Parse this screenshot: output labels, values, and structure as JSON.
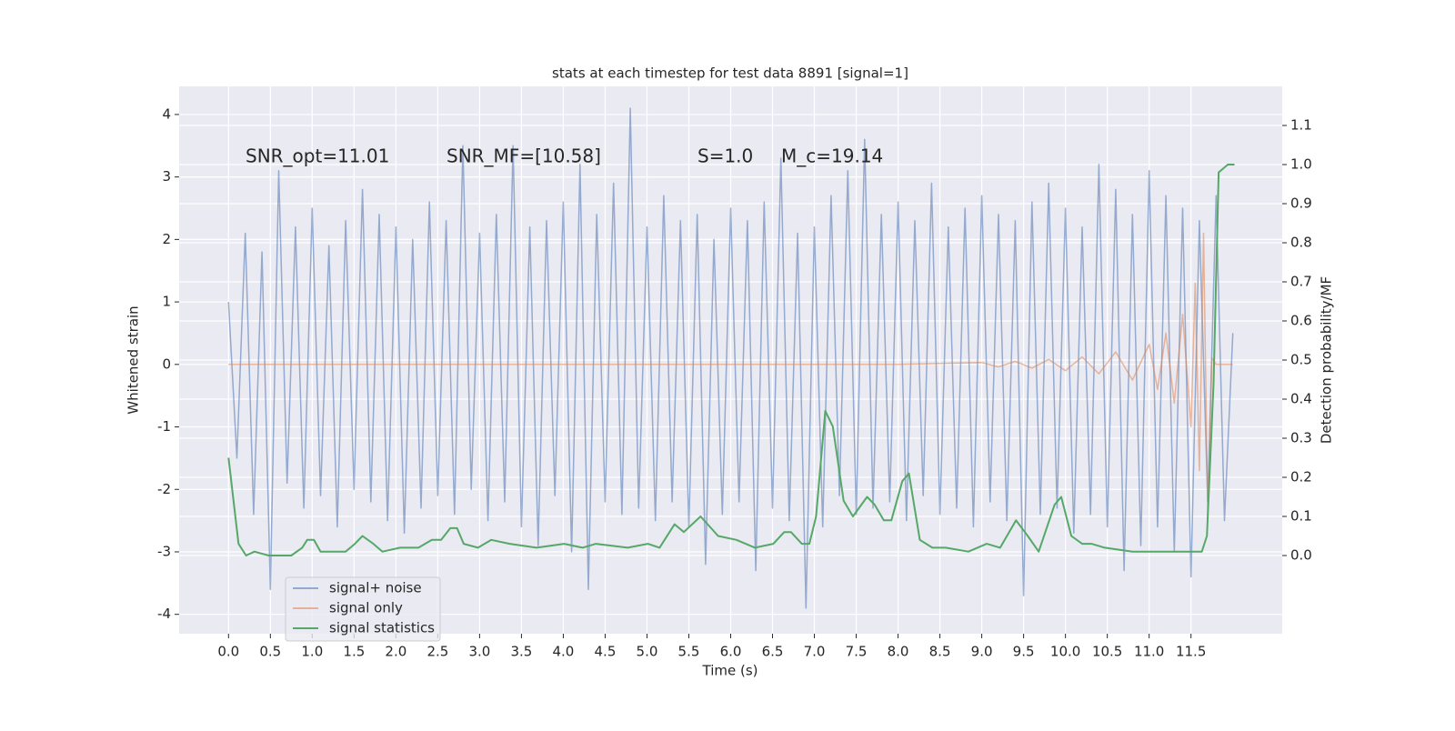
{
  "chart_data": {
    "type": "line",
    "title": "stats at each timestep for test data 8891 [signal=1]",
    "xlabel": "Time (s)",
    "ylabel": "Whitened strain",
    "y2label": "Detection probability/MF",
    "annotations": [
      "SNR_opt=11.01",
      "SNR_MF=[10.58]",
      "S=1.0",
      "M_c=19.14"
    ],
    "xlim": [
      -0.59,
      12.59
    ],
    "ylim": [
      -4.31,
      4.45
    ],
    "y2lim": [
      -0.2,
      1.2
    ],
    "xticks": [
      {
        "value": 0,
        "label": "0.0"
      },
      0.5,
      {
        "value": 1,
        "label": "1.0"
      },
      1.5,
      {
        "value": 2,
        "label": "2.0"
      },
      2.5,
      {
        "value": 3,
        "label": "3.0"
      },
      3.5,
      {
        "value": 4,
        "label": "4.0"
      },
      4.5,
      {
        "value": 5,
        "label": "5.0"
      },
      5.5,
      {
        "value": 6,
        "label": "6.0"
      },
      6.5,
      {
        "value": 7,
        "label": "7.0"
      },
      7.5,
      {
        "value": 8,
        "label": "8.0"
      },
      8.5,
      {
        "value": 9,
        "label": "9.0"
      },
      9.5,
      {
        "value": 10,
        "label": "10.0"
      },
      10.5,
      {
        "value": 11,
        "label": "11.0"
      },
      11.5
    ],
    "yticks": [
      -4,
      -3,
      -2,
      -1,
      0,
      1,
      2,
      3,
      4
    ],
    "y2ticks": [
      {
        "value": 0,
        "label": "0.0"
      },
      0.1,
      0.2,
      0.3,
      0.4,
      0.5,
      0.6,
      0.7,
      0.8,
      0.9,
      {
        "value": 1,
        "label": "1.0"
      },
      1.1
    ],
    "grid": true,
    "legend": "lower left",
    "series": [
      {
        "name": "signal+ noise",
        "color": "#4c72b0",
        "x": [
          0,
          0.1,
          0.2,
          0.3,
          0.4,
          0.5,
          0.6,
          0.7,
          0.8,
          0.9,
          1,
          1.1,
          1.2,
          1.3,
          1.4,
          1.5,
          1.6,
          1.7,
          1.8,
          1.9,
          2,
          2.1,
          2.2,
          2.3,
          2.4,
          2.5,
          2.6,
          2.7,
          2.8,
          2.9,
          3,
          3.1,
          3.2,
          3.3,
          3.4,
          3.5,
          3.6,
          3.7,
          3.8,
          3.9,
          4,
          4.1,
          4.2,
          4.3,
          4.4,
          4.5,
          4.6,
          4.7,
          4.8,
          4.9,
          5,
          5.1,
          5.2,
          5.3,
          5.4,
          5.5,
          5.6,
          5.7,
          5.8,
          5.9,
          6,
          6.1,
          6.2,
          6.3,
          6.4,
          6.5,
          6.6,
          6.7,
          6.8,
          6.9,
          7,
          7.1,
          7.2,
          7.3,
          7.4,
          7.5,
          7.6,
          7.7,
          7.8,
          7.9,
          8,
          8.1,
          8.2,
          8.3,
          8.4,
          8.5,
          8.6,
          8.7,
          8.8,
          8.9,
          9,
          9.1,
          9.2,
          9.3,
          9.4,
          9.5,
          9.6,
          9.7,
          9.8,
          9.9,
          10,
          10.1,
          10.2,
          10.3,
          10.4,
          10.5,
          10.6,
          10.7,
          10.8,
          10.9,
          11,
          11.1,
          11.2,
          11.3,
          11.4,
          11.5,
          11.6,
          11.7,
          11.8,
          11.9,
          12
        ],
        "values": [
          1.0,
          -1.5,
          2.1,
          -2.4,
          1.8,
          -3.6,
          3.1,
          -1.9,
          2.2,
          -2.3,
          2.5,
          -2.1,
          1.9,
          -2.6,
          2.3,
          -2.0,
          2.8,
          -2.2,
          2.4,
          -2.5,
          2.2,
          -2.7,
          2.0,
          -2.3,
          2.6,
          -2.1,
          2.3,
          -2.4,
          3.5,
          -2.0,
          2.1,
          -2.5,
          2.4,
          -2.2,
          3.5,
          -2.6,
          2.2,
          -2.9,
          2.3,
          -2.1,
          2.6,
          -3.0,
          3.2,
          -3.6,
          2.4,
          -2.2,
          2.9,
          -2.4,
          4.1,
          -2.3,
          2.2,
          -2.5,
          2.7,
          -2.2,
          2.3,
          -2.6,
          2.4,
          -3.2,
          2.0,
          -2.4,
          2.5,
          -2.2,
          2.3,
          -3.3,
          2.6,
          -2.3,
          3.3,
          -2.5,
          2.1,
          -3.9,
          2.2,
          -2.6,
          2.7,
          -2.1,
          3.1,
          -2.4,
          3.6,
          -2.3,
          2.4,
          -2.2,
          2.6,
          -2.5,
          2.3,
          -2.1,
          2.9,
          -2.4,
          2.2,
          -2.3,
          2.5,
          -2.6,
          2.7,
          -2.2,
          2.4,
          -2.5,
          2.3,
          -3.7,
          2.6,
          -2.4,
          2.9,
          -2.3,
          2.5,
          -2.7,
          2.2,
          -2.4,
          3.2,
          -2.6,
          2.8,
          -3.3,
          2.4,
          -2.9,
          3.1,
          -2.6,
          2.7,
          -3.0,
          2.5,
          -3.4,
          2.3,
          -2.2,
          2.7,
          -2.5,
          0.5
        ]
      },
      {
        "name": "signal only",
        "color": "#dd8452",
        "x": [
          0,
          1,
          2,
          3,
          4,
          5,
          6,
          7,
          8,
          9,
          9.2,
          9.4,
          9.6,
          9.8,
          10,
          10.2,
          10.4,
          10.6,
          10.8,
          11,
          11.1,
          11.2,
          11.3,
          11.4,
          11.5,
          11.55,
          11.6,
          11.65,
          11.7,
          11.75,
          11.8,
          12
        ],
        "values": [
          0,
          0,
          0,
          0,
          0,
          0,
          0,
          0,
          0,
          0.03,
          -0.04,
          0.05,
          -0.06,
          0.08,
          -0.1,
          0.12,
          -0.15,
          0.2,
          -0.25,
          0.32,
          -0.4,
          0.5,
          -0.62,
          0.8,
          -1.0,
          1.3,
          -1.7,
          2.1,
          -2.4,
          0.1,
          0,
          0
        ]
      },
      {
        "name": "signal statistics",
        "color": "#55a868",
        "axis": "y2",
        "x": [
          0,
          0.12,
          0.21,
          0.31,
          0.48,
          0.75,
          0.88,
          0.94,
          1.02,
          1.1,
          1.24,
          1.4,
          1.51,
          1.6,
          1.73,
          1.84,
          2.05,
          2.27,
          2.43,
          2.54,
          2.65,
          2.73,
          2.81,
          2.98,
          3.14,
          3.36,
          3.68,
          4.01,
          4.23,
          4.39,
          4.77,
          5.01,
          5.15,
          5.33,
          5.44,
          5.64,
          5.85,
          6.07,
          6.29,
          6.51,
          6.64,
          6.72,
          6.85,
          6.94,
          7.02,
          7.13,
          7.22,
          7.35,
          7.46,
          7.63,
          7.72,
          7.83,
          7.92,
          8.05,
          8.13,
          8.26,
          8.41,
          8.57,
          8.84,
          9.06,
          9.22,
          9.41,
          9.55,
          9.68,
          9.87,
          9.95,
          10.07,
          10.2,
          10.31,
          10.47,
          10.8,
          11.01,
          11.23,
          11.39,
          11.63,
          11.69,
          11.77,
          11.83,
          11.94,
          12.02
        ],
        "values": [
          0.25,
          0.03,
          0,
          0.01,
          0,
          0,
          0.02,
          0.04,
          0.04,
          0.01,
          0.01,
          0.01,
          0.03,
          0.05,
          0.03,
          0.01,
          0.02,
          0.02,
          0.04,
          0.04,
          0.07,
          0.07,
          0.03,
          0.02,
          0.04,
          0.03,
          0.02,
          0.03,
          0.02,
          0.03,
          0.02,
          0.03,
          0.02,
          0.08,
          0.06,
          0.1,
          0.05,
          0.04,
          0.02,
          0.03,
          0.06,
          0.06,
          0.03,
          0.03,
          0.1,
          0.37,
          0.33,
          0.14,
          0.1,
          0.15,
          0.13,
          0.09,
          0.09,
          0.19,
          0.21,
          0.04,
          0.02,
          0.02,
          0.01,
          0.03,
          0.02,
          0.09,
          0.05,
          0.01,
          0.13,
          0.15,
          0.05,
          0.03,
          0.03,
          0.02,
          0.01,
          0.01,
          0.01,
          0.01,
          0.01,
          0.05,
          0.44,
          0.98,
          1,
          1
        ]
      }
    ]
  }
}
